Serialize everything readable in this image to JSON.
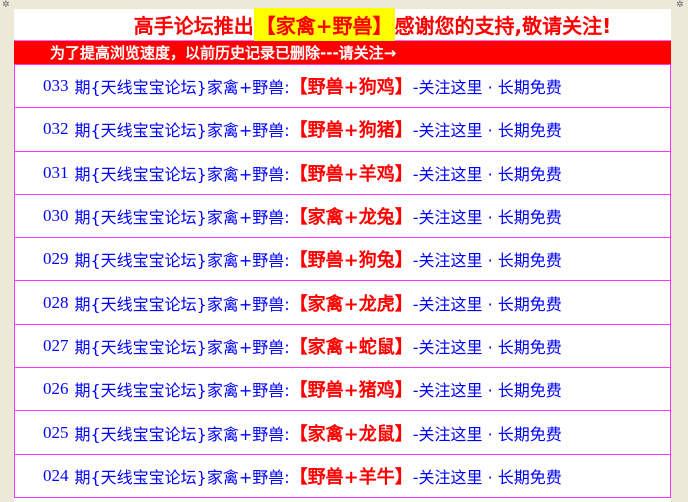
{
  "header": {
    "title_prefix": "高手论坛推出",
    "title_highlight": "【家禽+野兽】",
    "title_suffix": "感谢您的支持,敬请关注!",
    "notice": "为了提高浏览速度，以前历史记录已删除---请关注→"
  },
  "colors": {
    "title": "#ff0000",
    "highlight_bg": "#ffff00",
    "notice_bg": "#ff0000",
    "row_text": "#0000ff",
    "result": "#ff0000",
    "row_border": "#ff33ff"
  },
  "rows": [
    {
      "period": "033",
      "forum": "期{天线宝宝论坛}家禽+野兽:",
      "result": "【野兽+狗鸡】",
      "tail": "-关注这里 · 长期免费"
    },
    {
      "period": "032",
      "forum": "期{天线宝宝论坛}家禽+野兽:",
      "result": "【野兽+狗猪】",
      "tail": "-关注这里 · 长期免费"
    },
    {
      "period": "031",
      "forum": "期{天线宝宝论坛}家禽+野兽:",
      "result": "【野兽+羊鸡】",
      "tail": "-关注这里 · 长期免费"
    },
    {
      "period": "030",
      "forum": "期{天线宝宝论坛}家禽+野兽:",
      "result": "【家禽+龙兔】",
      "tail": "-关注这里 · 长期免费"
    },
    {
      "period": "029",
      "forum": "期{天线宝宝论坛}家禽+野兽:",
      "result": "【野兽+狗兔】",
      "tail": "-关注这里 · 长期免费"
    },
    {
      "period": "028",
      "forum": "期{天线宝宝论坛}家禽+野兽:",
      "result": "【家禽+龙虎】",
      "tail": "-关注这里 · 长期免费"
    },
    {
      "period": "027",
      "forum": "期{天线宝宝论坛}家禽+野兽:",
      "result": "【家禽+蛇鼠】",
      "tail": "-关注这里 · 长期免费"
    },
    {
      "period": "026",
      "forum": "期{天线宝宝论坛}家禽+野兽:",
      "result": "【野兽+猪鸡】",
      "tail": "-关注这里 · 长期免费"
    },
    {
      "period": "025",
      "forum": "期{天线宝宝论坛}家禽+野兽:",
      "result": "【家禽+龙鼠】",
      "tail": "-关注这里 · 长期免费"
    },
    {
      "period": "024",
      "forum": "期{天线宝宝论坛}家禽+野兽:",
      "result": "【野兽+羊牛】",
      "tail": "-关注这里 · 长期免费"
    }
  ]
}
